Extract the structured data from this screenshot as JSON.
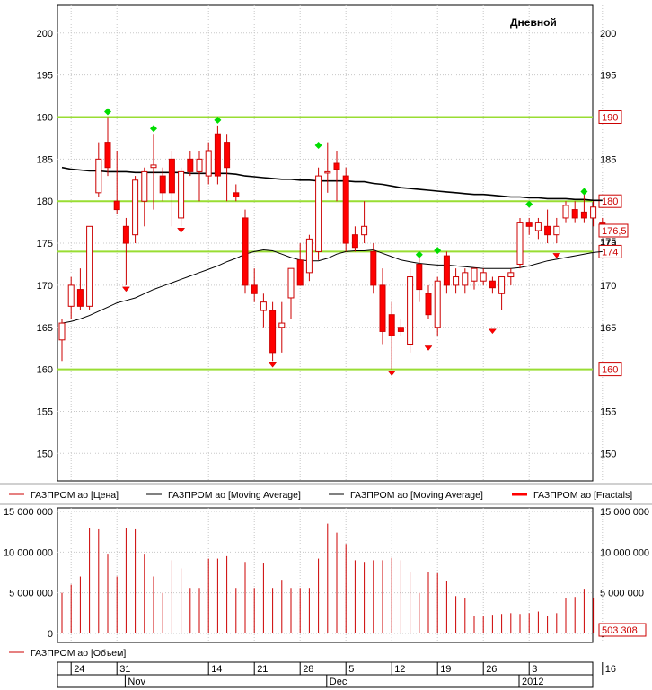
{
  "chart_data": [
    {
      "type": "candlestick",
      "period_label": "Дневной",
      "y_ticks": [
        150,
        155,
        160,
        165,
        170,
        175,
        180,
        185,
        190,
        195,
        200
      ],
      "ylim": [
        146,
        203
      ],
      "levels": [
        {
          "value": 190,
          "label": "190"
        },
        {
          "value": 180,
          "label": "180"
        },
        {
          "value": 174,
          "label": "174"
        },
        {
          "value": 160,
          "label": "160"
        }
      ],
      "last_price": {
        "value": 176.5,
        "label": "176,5"
      },
      "extra_tick": {
        "value": 175.2,
        "label": "175"
      },
      "candles": [
        {
          "o": 163.5,
          "h": 166.0,
          "l": 161.0,
          "c": 165.5
        },
        {
          "o": 167.5,
          "h": 171.0,
          "l": 166.0,
          "c": 170.0
        },
        {
          "o": 169.5,
          "h": 172.0,
          "l": 167.0,
          "c": 167.5
        },
        {
          "o": 167.5,
          "h": 177.0,
          "l": 167.0,
          "c": 177.0
        },
        {
          "o": 181.0,
          "h": 187.0,
          "l": 180.5,
          "c": 185.0
        },
        {
          "o": 187.0,
          "h": 190.0,
          "l": 183.0,
          "c": 184.0
        },
        {
          "o": 180.0,
          "h": 186.0,
          "l": 178.5,
          "c": 179.0
        },
        {
          "o": 177.0,
          "h": 178.0,
          "l": 170.0,
          "c": 175.0
        },
        {
          "o": 176.0,
          "h": 183.0,
          "l": 175.0,
          "c": 182.5
        },
        {
          "o": 180.0,
          "h": 184.0,
          "l": 177.0,
          "c": 183.5
        },
        {
          "o": 184.0,
          "h": 188.0,
          "l": 179.0,
          "c": 184.3
        },
        {
          "o": 183.0,
          "h": 184.0,
          "l": 180.0,
          "c": 181.0
        },
        {
          "o": 185.0,
          "h": 186.0,
          "l": 177.0,
          "c": 181.0
        },
        {
          "o": 178.0,
          "h": 184.0,
          "l": 177.0,
          "c": 183.5
        },
        {
          "o": 185.0,
          "h": 186.0,
          "l": 183.0,
          "c": 183.5
        },
        {
          "o": 183.5,
          "h": 186.0,
          "l": 180.0,
          "c": 185.0
        },
        {
          "o": 183.0,
          "h": 187.0,
          "l": 182.0,
          "c": 186.0
        },
        {
          "o": 188.0,
          "h": 189.0,
          "l": 182.0,
          "c": 183.0
        },
        {
          "o": 187.0,
          "h": 188.0,
          "l": 180.0,
          "c": 184.0
        },
        {
          "o": 181.0,
          "h": 182.0,
          "l": 180.0,
          "c": 180.5
        },
        {
          "o": 178.0,
          "h": 179.0,
          "l": 169.0,
          "c": 170.0
        },
        {
          "o": 170.0,
          "h": 172.0,
          "l": 168.0,
          "c": 169.0
        },
        {
          "o": 167.0,
          "h": 169.0,
          "l": 165.0,
          "c": 168.0
        },
        {
          "o": 167.0,
          "h": 168.0,
          "l": 161.0,
          "c": 162.0
        },
        {
          "o": 165.0,
          "h": 168.0,
          "l": 162.0,
          "c": 165.5
        },
        {
          "o": 168.5,
          "h": 172.0,
          "l": 166.0,
          "c": 172.0
        },
        {
          "o": 173.0,
          "h": 175.0,
          "l": 170.0,
          "c": 170.0
        },
        {
          "o": 171.5,
          "h": 176.0,
          "l": 170.5,
          "c": 175.5
        },
        {
          "o": 174.0,
          "h": 184.0,
          "l": 173.0,
          "c": 183.0
        },
        {
          "o": 183.5,
          "h": 187.0,
          "l": 181.0,
          "c": 183.5
        },
        {
          "o": 184.5,
          "h": 186.0,
          "l": 180.0,
          "c": 183.8
        },
        {
          "o": 183.0,
          "h": 184.0,
          "l": 174.0,
          "c": 175.0
        },
        {
          "o": 176.0,
          "h": 177.0,
          "l": 174.0,
          "c": 174.5
        },
        {
          "o": 176.0,
          "h": 180.0,
          "l": 175.0,
          "c": 177.0
        },
        {
          "o": 174.0,
          "h": 175.0,
          "l": 169.0,
          "c": 170.0
        },
        {
          "o": 170.0,
          "h": 172.0,
          "l": 163.0,
          "c": 164.5
        },
        {
          "o": 166.5,
          "h": 168.0,
          "l": 160.0,
          "c": 164.0
        },
        {
          "o": 165.0,
          "h": 166.0,
          "l": 164.0,
          "c": 164.5
        },
        {
          "o": 163.0,
          "h": 172.0,
          "l": 162.0,
          "c": 171.0
        },
        {
          "o": 172.5,
          "h": 174.0,
          "l": 168.0,
          "c": 169.5
        },
        {
          "o": 169.0,
          "h": 170.0,
          "l": 166.0,
          "c": 166.5
        },
        {
          "o": 165.0,
          "h": 171.0,
          "l": 164.0,
          "c": 170.5
        },
        {
          "o": 173.5,
          "h": 174.0,
          "l": 169.0,
          "c": 170.0
        },
        {
          "o": 170.0,
          "h": 172.0,
          "l": 169.0,
          "c": 171.0
        },
        {
          "o": 170.0,
          "h": 172.0,
          "l": 169.0,
          "c": 171.5
        },
        {
          "o": 170.5,
          "h": 172.0,
          "l": 169.5,
          "c": 172.0
        },
        {
          "o": 170.5,
          "h": 172.0,
          "l": 170.0,
          "c": 171.5
        },
        {
          "o": 170.5,
          "h": 171.0,
          "l": 169.0,
          "c": 169.7
        },
        {
          "o": 169.0,
          "h": 171.0,
          "l": 167.0,
          "c": 171.0
        },
        {
          "o": 171.0,
          "h": 172.0,
          "l": 170.0,
          "c": 171.5
        },
        {
          "o": 172.5,
          "h": 178.0,
          "l": 172.0,
          "c": 177.5
        },
        {
          "o": 177.5,
          "h": 178.0,
          "l": 176.0,
          "c": 177.0
        },
        {
          "o": 176.5,
          "h": 178.0,
          "l": 175.5,
          "c": 177.5
        },
        {
          "o": 177.0,
          "h": 179.0,
          "l": 175.0,
          "c": 176.0
        },
        {
          "o": 176.0,
          "h": 178.0,
          "l": 175.0,
          "c": 177.0
        },
        {
          "o": 178.0,
          "h": 180.0,
          "l": 177.5,
          "c": 179.5
        },
        {
          "o": 179.0,
          "h": 180.0,
          "l": 177.5,
          "c": 178.0
        },
        {
          "o": 178.7,
          "h": 181.0,
          "l": 177.5,
          "c": 178.0
        },
        {
          "o": 178.0,
          "h": 180.0,
          "l": 177.0,
          "c": 179.3
        },
        {
          "o": 177.5,
          "h": 178.0,
          "l": 176.0,
          "c": 176.5
        }
      ],
      "ma_slow": [
        184.0,
        183.8,
        183.7,
        183.6,
        183.6,
        183.5,
        183.5,
        183.5,
        183.4,
        183.4,
        183.4,
        183.4,
        183.4,
        183.4,
        183.3,
        183.3,
        183.3,
        183.3,
        183.3,
        183.2,
        183.0,
        182.9,
        182.8,
        182.7,
        182.6,
        182.6,
        182.5,
        182.5,
        182.4,
        182.4,
        182.4,
        182.4,
        182.3,
        182.3,
        182.1,
        182.0,
        181.8,
        181.6,
        181.5,
        181.4,
        181.3,
        181.2,
        181.1,
        181.0,
        180.9,
        180.8,
        180.8,
        180.7,
        180.6,
        180.5,
        180.5,
        180.4,
        180.4,
        180.3,
        180.3,
        180.3,
        180.2,
        180.2,
        180.1,
        180.1
      ],
      "ma_fast": [
        165.5,
        165.7,
        166.0,
        166.4,
        166.9,
        167.4,
        167.9,
        168.2,
        168.5,
        169.0,
        169.5,
        169.9,
        170.3,
        170.7,
        171.1,
        171.5,
        171.9,
        172.3,
        172.8,
        173.2,
        173.7,
        174.0,
        174.2,
        174.1,
        173.7,
        173.3,
        173.0,
        172.9,
        172.9,
        173.2,
        173.7,
        174.0,
        174.1,
        174.1,
        174.2,
        173.8,
        173.4,
        173.0,
        172.8,
        172.6,
        172.5,
        172.4,
        172.4,
        172.3,
        172.2,
        172.1,
        172.0,
        172.0,
        172.0,
        172.0,
        172.1,
        172.3,
        172.6,
        172.9,
        173.1,
        173.3,
        173.5,
        173.7,
        173.9,
        174.0
      ],
      "fractals": [
        {
          "i": 5,
          "dir": "up",
          "value": 190
        },
        {
          "i": 10,
          "dir": "up",
          "value": 188
        },
        {
          "i": 17,
          "dir": "up",
          "value": 189
        },
        {
          "i": 28,
          "dir": "up",
          "value": 186
        },
        {
          "i": 39,
          "dir": "up",
          "value": 173
        },
        {
          "i": 41,
          "dir": "up",
          "value": 173.5
        },
        {
          "i": 51,
          "dir": "up",
          "value": 179
        },
        {
          "i": 57,
          "dir": "up",
          "value": 180.5
        },
        {
          "i": 7,
          "dir": "down",
          "value": 170
        },
        {
          "i": 13,
          "dir": "down",
          "value": 177
        },
        {
          "i": 23,
          "dir": "down",
          "value": 161
        },
        {
          "i": 36,
          "dir": "down",
          "value": 160
        },
        {
          "i": 40,
          "dir": "down",
          "value": 163
        },
        {
          "i": 47,
          "dir": "down",
          "value": 165
        },
        {
          "i": 54,
          "dir": "down",
          "value": 174
        }
      ],
      "legend": [
        {
          "label": "ГАЗПРОМ ао [Цена]",
          "color": "#cc0000"
        },
        {
          "label": "ГАЗПРОМ ао [Moving Average]",
          "color": "#000000"
        },
        {
          "label": "ГАЗПРОМ ао [Moving Average]",
          "color": "#000000"
        },
        {
          "label": "ГАЗПРОМ ао [Fractals]",
          "color": "#ff0000"
        }
      ],
      "colors": {
        "bull": "#cc0000",
        "bear": "#ff0000",
        "level": "#99dd33",
        "fractal_up": "#00dd00",
        "fractal_down": "#ff0000"
      }
    },
    {
      "type": "bar",
      "y_ticks": [
        {
          "value": 0,
          "label": "0"
        },
        {
          "value": 5000000,
          "label": "5 000 000"
        },
        {
          "value": 10000000,
          "label": "10 000 000"
        },
        {
          "value": 15000000,
          "label": "15 000 000"
        }
      ],
      "ylim": [
        0,
        15000000
      ],
      "last_value": {
        "value": 503308,
        "label": "503 308"
      },
      "values": [
        5000000,
        6000000,
        7000000,
        13000000,
        12800000,
        9800000,
        7000000,
        13000000,
        12800000,
        9800000,
        7000000,
        5000000,
        9000000,
        8000000,
        5600000,
        5600000,
        9200000,
        9200000,
        9500000,
        5600000,
        8800000,
        5600000,
        8600000,
        5600000,
        6600000,
        5600000,
        5600000,
        5600000,
        9200000,
        13500000,
        12400000,
        11000000,
        9000000,
        8800000,
        9000000,
        9000000,
        9300000,
        9000000,
        7500000,
        5000000,
        7500000,
        7400000,
        6500000,
        4600000,
        4300000,
        2100000,
        2100000,
        2300000,
        2400000,
        2500000,
        2400000,
        2500000,
        2700000,
        2200000,
        2500000,
        4400000,
        4500000,
        5500000,
        4300000,
        503308
      ],
      "legend": [
        {
          "label": "ГАЗПРОМ ао [Объем]",
          "color": "#cc0000"
        }
      ]
    }
  ],
  "x_axis": {
    "day_labels": [
      {
        "i": 1,
        "label": "24"
      },
      {
        "i": 6,
        "label": "31"
      },
      {
        "i": 16,
        "label": "14"
      },
      {
        "i": 21,
        "label": "21"
      },
      {
        "i": 26,
        "label": "28"
      },
      {
        "i": 31,
        "label": "5"
      },
      {
        "i": 36,
        "label": "12"
      },
      {
        "i": 41,
        "label": "19"
      },
      {
        "i": 46,
        "label": "26"
      },
      {
        "i": 51,
        "label": "3"
      },
      {
        "i": 59,
        "label": "16"
      }
    ],
    "month_labels": [
      {
        "i": 7,
        "label": "Nov"
      },
      {
        "i": 29,
        "label": "Dec"
      },
      {
        "i": 50,
        "label": "2012"
      }
    ]
  }
}
